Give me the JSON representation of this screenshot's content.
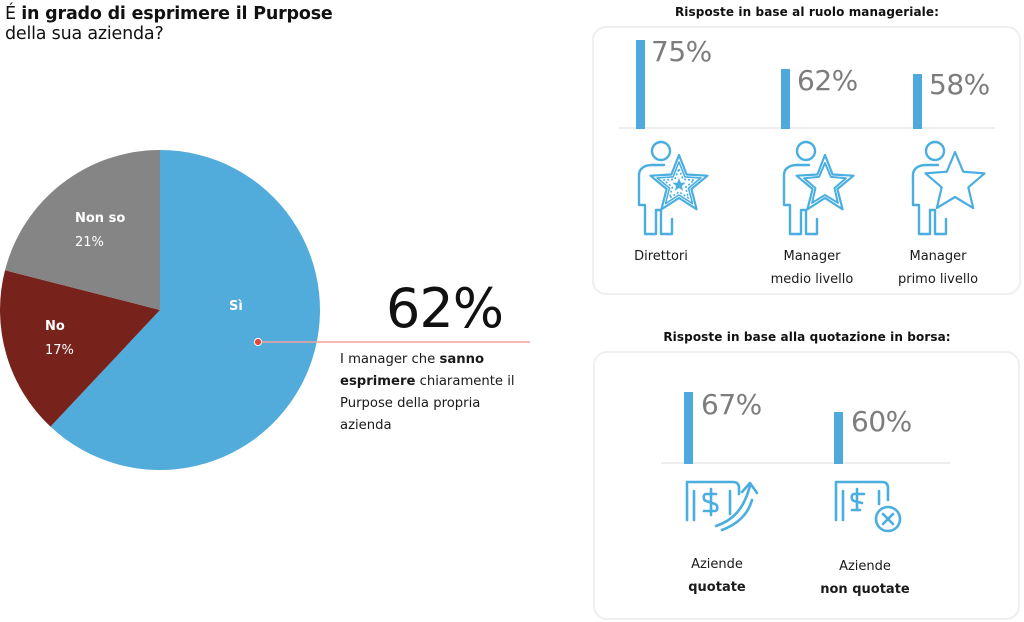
{
  "title": {
    "prefix": "É ",
    "bold": "in grado di esprimere il Purpose",
    "line2": "della sua azienda?"
  },
  "callout": {
    "value": "62%",
    "text_pre": "I manager che ",
    "text_bold": "sanno esprimere",
    "text_post": " chiaramente il Purpose della propria azienda"
  },
  "colors": {
    "si": "#51acdc",
    "no": "#77221b",
    "non_so": "#858585",
    "bar": "#4fa9dc",
    "icon": "#4aaee0",
    "callout_dot": "#e8453c",
    "callout_line": "#f4a29c"
  },
  "pie_labels": {
    "si": {
      "name": "Sì",
      "pct": ""
    },
    "no": {
      "name": "No",
      "pct": "17%"
    },
    "non_so": {
      "name": "Non so",
      "pct": "21%"
    }
  },
  "role_panel": {
    "title": "Risposte in base al ruolo manageriale:",
    "items": [
      {
        "pct": "75%",
        "line1": "Direttori",
        "line2": "",
        "icon": "person-star-icon-tiered"
      },
      {
        "pct": "62%",
        "line1": "Manager",
        "line2": "medio livello",
        "icon": "person-star-icon-double"
      },
      {
        "pct": "58%",
        "line1": "Manager",
        "line2": "primo livello",
        "icon": "person-star-icon-single"
      }
    ]
  },
  "listing_panel": {
    "title": "Risposte in base alla quotazione in borsa:",
    "items": [
      {
        "pct": "67%",
        "line1": "Aziende",
        "line2": "quotate",
        "icon": "money-up-arrow-icon"
      },
      {
        "pct": "60%",
        "line1": "Aziende",
        "line2": "non quotate",
        "icon": "money-cancel-icon"
      }
    ]
  },
  "chart_data": [
    {
      "type": "pie",
      "title": "É in grado di esprimere il Purpose della sua azienda?",
      "categories": [
        "Sì",
        "No",
        "Non so"
      ],
      "values": [
        62,
        17,
        21
      ],
      "colors": [
        "#51acdc",
        "#77221b",
        "#858585"
      ],
      "annotation": "62% — I manager che sanno esprimere chiaramente il Purpose della propria azienda",
      "legend": "none (inline labels)"
    },
    {
      "type": "bar",
      "title": "Risposte in base al ruolo manageriale:",
      "categories": [
        "Direttori",
        "Manager medio livello",
        "Manager primo livello"
      ],
      "values": [
        75,
        62,
        58
      ],
      "unit": "%",
      "grid": false
    },
    {
      "type": "bar",
      "title": "Risposte in base alla quotazione in borsa:",
      "categories": [
        "Aziende quotate",
        "Aziende non quotate"
      ],
      "values": [
        67,
        60
      ],
      "unit": "%",
      "grid": false
    }
  ]
}
